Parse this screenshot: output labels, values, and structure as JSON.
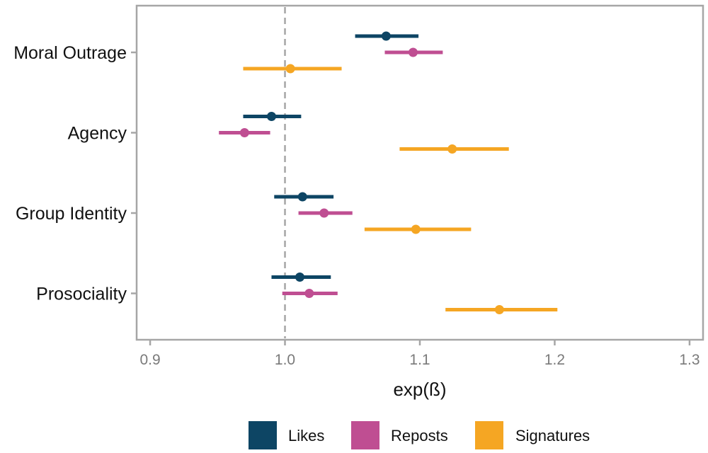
{
  "chart_data": {
    "type": "scatter",
    "subtype": "forest-plot-with-confidence-intervals",
    "title": "",
    "xlabel": "exp(ß)",
    "ylabel": "",
    "xlim": [
      0.89,
      1.31
    ],
    "x_ticks": [
      0.9,
      1.0,
      1.1,
      1.2,
      1.3
    ],
    "x_tick_labels": [
      "0.9",
      "1.0",
      "1.1",
      "1.2",
      "1.3"
    ],
    "reference_line": 1.0,
    "grid": false,
    "legend_position": "bottom",
    "categories": [
      "Moral Outrage",
      "Agency",
      "Group Identity",
      "Prosociality"
    ],
    "series": [
      {
        "name": "Likes",
        "color": "#0d4564",
        "points": [
          {
            "category": "Moral Outrage",
            "estimate": 1.075,
            "low": 1.052,
            "high": 1.099
          },
          {
            "category": "Agency",
            "estimate": 0.99,
            "low": 0.969,
            "high": 1.012
          },
          {
            "category": "Group Identity",
            "estimate": 1.013,
            "low": 0.992,
            "high": 1.036
          },
          {
            "category": "Prosociality",
            "estimate": 1.011,
            "low": 0.99,
            "high": 1.034
          }
        ]
      },
      {
        "name": "Reposts",
        "color": "#bf4e92",
        "points": [
          {
            "category": "Moral Outrage",
            "estimate": 1.095,
            "low": 1.074,
            "high": 1.117
          },
          {
            "category": "Agency",
            "estimate": 0.97,
            "low": 0.951,
            "high": 0.989
          },
          {
            "category": "Group Identity",
            "estimate": 1.029,
            "low": 1.01,
            "high": 1.05
          },
          {
            "category": "Prosociality",
            "estimate": 1.018,
            "low": 0.998,
            "high": 1.039
          }
        ]
      },
      {
        "name": "Signatures",
        "color": "#f5a623",
        "points": [
          {
            "category": "Moral Outrage",
            "estimate": 1.004,
            "low": 0.969,
            "high": 1.042
          },
          {
            "category": "Agency",
            "estimate": 1.124,
            "low": 1.085,
            "high": 1.166
          },
          {
            "category": "Group Identity",
            "estimate": 1.097,
            "low": 1.059,
            "high": 1.138
          },
          {
            "category": "Prosociality",
            "estimate": 1.159,
            "low": 1.119,
            "high": 1.202
          }
        ]
      }
    ]
  }
}
